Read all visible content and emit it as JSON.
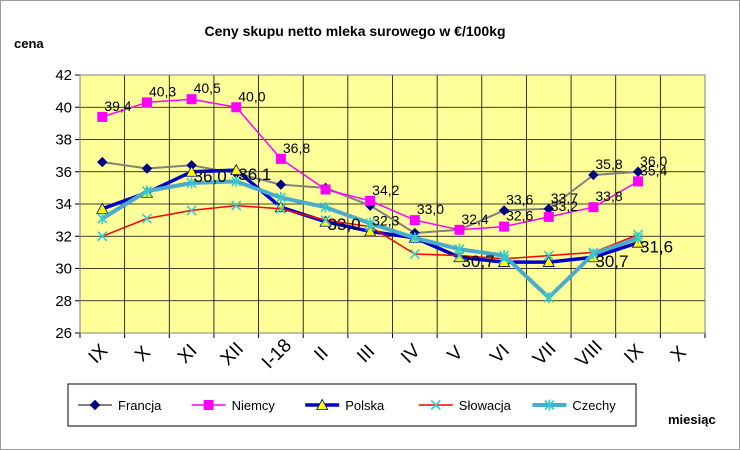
{
  "chart_data": {
    "type": "line",
    "title": "Ceny skupu netto mleka surowego   w €/100kg",
    "ylabel": "cena",
    "xlabel": "miesiąc",
    "ylim": [
      26,
      42
    ],
    "yticks": [
      "26",
      "28",
      "30",
      "32",
      "34",
      "36",
      "38",
      "40",
      "42"
    ],
    "categories": [
      "IX",
      "X",
      "XI",
      "XII",
      "I-18",
      "II",
      "III",
      "IV",
      "V",
      "VI",
      "VII",
      "VIII",
      "IX",
      "X"
    ],
    "grid": true,
    "legend_position": "bottom",
    "plot_background": "#ffff99",
    "series": [
      {
        "name": "Francja",
        "color": "#808080",
        "marker_color": "#000080",
        "marker": "diamond",
        "width": 2,
        "values": [
          36.6,
          36.2,
          36.4,
          35.9,
          35.2,
          35.0,
          33.9,
          32.2,
          32.4,
          33.6,
          33.7,
          35.8,
          36.0,
          null
        ]
      },
      {
        "name": "Niemcy",
        "color": "#ff00ff",
        "marker_color": "#ff00ff",
        "marker": "square",
        "width": 1.5,
        "values": [
          39.4,
          40.3,
          40.5,
          40.0,
          36.8,
          34.9,
          34.2,
          33.0,
          32.4,
          32.6,
          33.2,
          33.8,
          35.4,
          null
        ]
      },
      {
        "name": "Polska",
        "color": "#0000cc",
        "marker_color": "#ffff00",
        "marker": "triangle",
        "width": 3.5,
        "values": [
          33.7,
          34.7,
          36.0,
          36.1,
          33.8,
          32.9,
          32.3,
          31.9,
          30.7,
          30.4,
          30.4,
          30.7,
          31.6,
          null
        ]
      },
      {
        "name": "Słowacja",
        "color": "#ff0000",
        "marker_color": "#33cccc",
        "marker": "x",
        "width": 1.5,
        "values": [
          32.0,
          33.1,
          33.6,
          33.9,
          33.7,
          33.0,
          32.6,
          30.9,
          30.8,
          30.6,
          30.8,
          31.0,
          32.1,
          null
        ]
      },
      {
        "name": "Czechy",
        "color": "#4aabcf",
        "marker_color": "#33cccc",
        "marker": "star",
        "width": 4,
        "values": [
          33.1,
          34.8,
          35.3,
          35.4,
          34.4,
          33.8,
          32.8,
          31.9,
          31.2,
          30.8,
          28.2,
          30.9,
          31.9,
          null
        ]
      }
    ],
    "data_labels": [
      {
        "text": "39,4",
        "x": "IX",
        "y": 39.4,
        "big": false
      },
      {
        "text": "40,3",
        "x": "X",
        "y": 40.3,
        "big": false
      },
      {
        "text": "40,5",
        "x": "XI",
        "y": 40.5,
        "big": false
      },
      {
        "text": "40,0",
        "x": "XII",
        "y": 40.0,
        "big": false
      },
      {
        "text": "36,8",
        "x": "I-18",
        "y": 36.8,
        "big": false
      },
      {
        "text": "34,2",
        "x": "III",
        "y": 34.2,
        "big": false
      },
      {
        "text": "33,0",
        "x": "IV",
        "y": 33.0,
        "big": false
      },
      {
        "text": "32,3",
        "x": "III",
        "y": 32.3,
        "big": false
      },
      {
        "text": "32,4",
        "x": "V",
        "y": 32.4,
        "big": false
      },
      {
        "text": "33,6",
        "x": "VI",
        "y": 33.6,
        "big": false
      },
      {
        "text": "32,6",
        "x": "VI",
        "y": 32.6,
        "big": false
      },
      {
        "text": "33,7",
        "x": "VII",
        "y": 33.7,
        "big": false
      },
      {
        "text": "33,2",
        "x": "VII",
        "y": 33.2,
        "big": false
      },
      {
        "text": "35,8",
        "x": "VIII",
        "y": 35.8,
        "big": false
      },
      {
        "text": "33,8",
        "x": "VIII",
        "y": 33.8,
        "big": false
      },
      {
        "text": "36,0",
        "x": "IX",
        "y": 36.0,
        "big": false
      },
      {
        "text": "35,4",
        "x": "IX",
        "y": 35.4,
        "big": false
      },
      {
        "text": "36,1",
        "x": "XII",
        "y": 36.1,
        "big": true
      },
      {
        "text": "36,0",
        "x": "XI",
        "y": 36.0,
        "big": true
      },
      {
        "text": "33,0",
        "x": "II",
        "y": 33.0,
        "big": true
      },
      {
        "text": "30,7",
        "x": "V",
        "y": 30.7,
        "big": true
      },
      {
        "text": "30,7",
        "x": "VIII",
        "y": 30.7,
        "big": true
      },
      {
        "text": "31,6",
        "x": "IX",
        "y": 31.6,
        "big": true
      }
    ]
  }
}
